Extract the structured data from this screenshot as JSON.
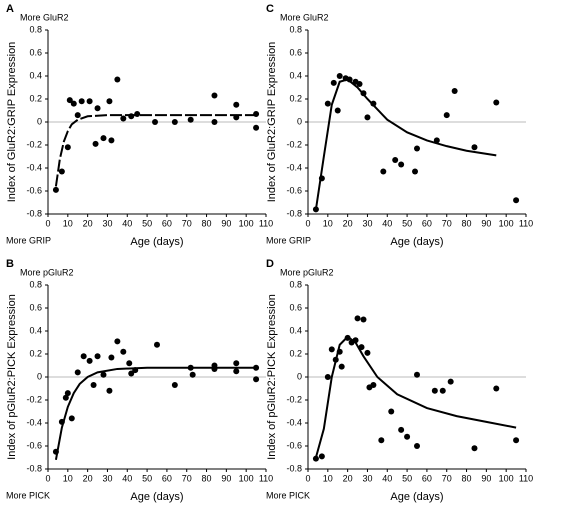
{
  "chart_data": [
    {
      "type": "scatter",
      "panel": "A",
      "top_label": "More GluR2",
      "bottom_label": "More GRIP",
      "y_label": "Index of GluR2:GRIP Expression",
      "x_label": "Age (days)",
      "xlim": [
        0,
        110
      ],
      "xticks": [
        0,
        10,
        20,
        30,
        40,
        50,
        60,
        70,
        80,
        90,
        100,
        110
      ],
      "ylim": [
        -0.8,
        0.8
      ],
      "yticks": [
        0.8,
        0.6,
        0.4,
        0.2,
        0,
        -0.2,
        -0.4,
        -0.6,
        -0.8
      ],
      "zero_line": true,
      "dashed_fit": true,
      "color": "#000000",
      "x": [
        4,
        7,
        10,
        11,
        13,
        15,
        17,
        21,
        24,
        25,
        28,
        31,
        32,
        35,
        38,
        42,
        45,
        54,
        64,
        72,
        84,
        84,
        95,
        95,
        105,
        105
      ],
      "values": [
        -0.59,
        -0.43,
        -0.22,
        0.19,
        0.16,
        0.06,
        0.18,
        0.18,
        -0.19,
        0.12,
        -0.14,
        0.18,
        -0.16,
        0.37,
        0.03,
        0.05,
        0.07,
        0.0,
        0.0,
        0.02,
        0.23,
        0.0,
        0.15,
        0.04,
        0.07,
        -0.05
      ],
      "fit_x": [
        4,
        6,
        8,
        10,
        12,
        15,
        20,
        30,
        50,
        105
      ],
      "fit_values": [
        -0.56,
        -0.32,
        -0.17,
        -0.08,
        -0.02,
        0.02,
        0.05,
        0.06,
        0.06,
        0.06
      ]
    },
    {
      "type": "scatter",
      "panel": "C",
      "top_label": "More GluR2",
      "bottom_label": "More GRIP",
      "y_label": "Index of GluR2:GRIP Expression",
      "x_label": "Age (days)",
      "xlim": [
        0,
        110
      ],
      "xticks": [
        0,
        10,
        20,
        30,
        40,
        50,
        60,
        70,
        80,
        90,
        100,
        110
      ],
      "ylim": [
        -0.8,
        0.8
      ],
      "yticks": [
        0.8,
        0.6,
        0.4,
        0.2,
        0,
        -0.2,
        -0.4,
        -0.6,
        -0.8
      ],
      "zero_line": true,
      "dashed_fit": false,
      "color": "#000000",
      "x": [
        4,
        7,
        10,
        13,
        15,
        16,
        19,
        21,
        24,
        26,
        28,
        30,
        33,
        38,
        44,
        47,
        54,
        55,
        65,
        70,
        74,
        84,
        95,
        105
      ],
      "values": [
        -0.76,
        -0.49,
        0.16,
        0.34,
        0.1,
        0.4,
        0.38,
        0.37,
        0.35,
        0.33,
        0.25,
        0.04,
        0.16,
        -0.43,
        -0.33,
        -0.37,
        -0.43,
        -0.23,
        -0.16,
        0.06,
        0.27,
        -0.22,
        0.17,
        -0.68
      ],
      "fit_x": [
        4,
        8,
        12,
        16,
        20,
        25,
        30,
        40,
        50,
        60,
        70,
        80,
        95
      ],
      "fit_values": [
        -0.76,
        -0.3,
        0.15,
        0.35,
        0.37,
        0.3,
        0.2,
        0.02,
        -0.09,
        -0.16,
        -0.21,
        -0.25,
        -0.29
      ]
    },
    {
      "type": "scatter",
      "panel": "B",
      "top_label": "More pGluR2",
      "bottom_label": "More PICK",
      "y_label": "Index of pGluR2:PICK Expression",
      "x_label": "Age (days)",
      "xlim": [
        0,
        110
      ],
      "xticks": [
        0,
        10,
        20,
        30,
        40,
        50,
        60,
        70,
        80,
        90,
        100,
        110
      ],
      "ylim": [
        -0.8,
        0.8
      ],
      "yticks": [
        0.8,
        0.6,
        0.4,
        0.2,
        0,
        -0.2,
        -0.4,
        -0.6,
        -0.8
      ],
      "zero_line": true,
      "dashed_fit": false,
      "color": "#000000",
      "x": [
        4,
        7,
        9,
        10,
        12,
        15,
        18,
        21,
        23,
        25,
        28,
        31,
        32,
        35,
        38,
        41,
        42,
        44,
        55,
        64,
        72,
        73,
        84,
        84,
        95,
        95,
        105,
        105
      ],
      "values": [
        -0.65,
        -0.39,
        -0.18,
        -0.14,
        -0.36,
        0.04,
        0.18,
        0.14,
        -0.07,
        0.18,
        0.02,
        -0.12,
        0.17,
        0.31,
        0.22,
        0.12,
        0.03,
        0.06,
        0.28,
        -0.07,
        0.08,
        0.02,
        0.07,
        0.1,
        0.05,
        0.12,
        0.08,
        -0.02
      ],
      "fit_x": [
        4,
        7,
        10,
        13,
        16,
        20,
        25,
        35,
        50,
        105
      ],
      "fit_values": [
        -0.72,
        -0.44,
        -0.26,
        -0.14,
        -0.06,
        0.0,
        0.04,
        0.07,
        0.08,
        0.08
      ]
    },
    {
      "type": "scatter",
      "panel": "D",
      "top_label": "More pGluR2",
      "bottom_label": "More PICK",
      "y_label": "Index of pGluR2:PICK Expression",
      "x_label": "Age (days)",
      "xlim": [
        0,
        110
      ],
      "xticks": [
        0,
        10,
        20,
        30,
        40,
        50,
        60,
        70,
        80,
        90,
        100,
        110
      ],
      "ylim": [
        -0.8,
        0.8
      ],
      "yticks": [
        0.8,
        0.6,
        0.4,
        0.2,
        0,
        -0.2,
        -0.4,
        -0.6,
        -0.8
      ],
      "zero_line": true,
      "dashed_fit": false,
      "color": "#000000",
      "x": [
        4,
        7,
        10,
        12,
        14,
        16,
        17,
        20,
        22,
        24,
        25,
        27,
        28,
        30,
        31,
        33,
        37,
        42,
        47,
        50,
        55,
        55,
        64,
        68,
        72,
        84,
        95,
        105
      ],
      "values": [
        -0.71,
        -0.69,
        0.0,
        0.24,
        0.15,
        0.22,
        0.09,
        0.34,
        0.3,
        0.32,
        0.51,
        0.26,
        0.5,
        0.21,
        -0.09,
        -0.07,
        -0.55,
        -0.3,
        -0.46,
        -0.52,
        0.02,
        -0.6,
        -0.12,
        -0.12,
        -0.04,
        -0.62,
        -0.1,
        -0.55
      ],
      "fit_x": [
        4,
        8,
        12,
        16,
        20,
        24,
        28,
        35,
        45,
        60,
        75,
        90,
        105
      ],
      "fit_values": [
        -0.7,
        -0.45,
        0.0,
        0.28,
        0.35,
        0.3,
        0.18,
        0.0,
        -0.15,
        -0.27,
        -0.34,
        -0.39,
        -0.44
      ]
    }
  ]
}
